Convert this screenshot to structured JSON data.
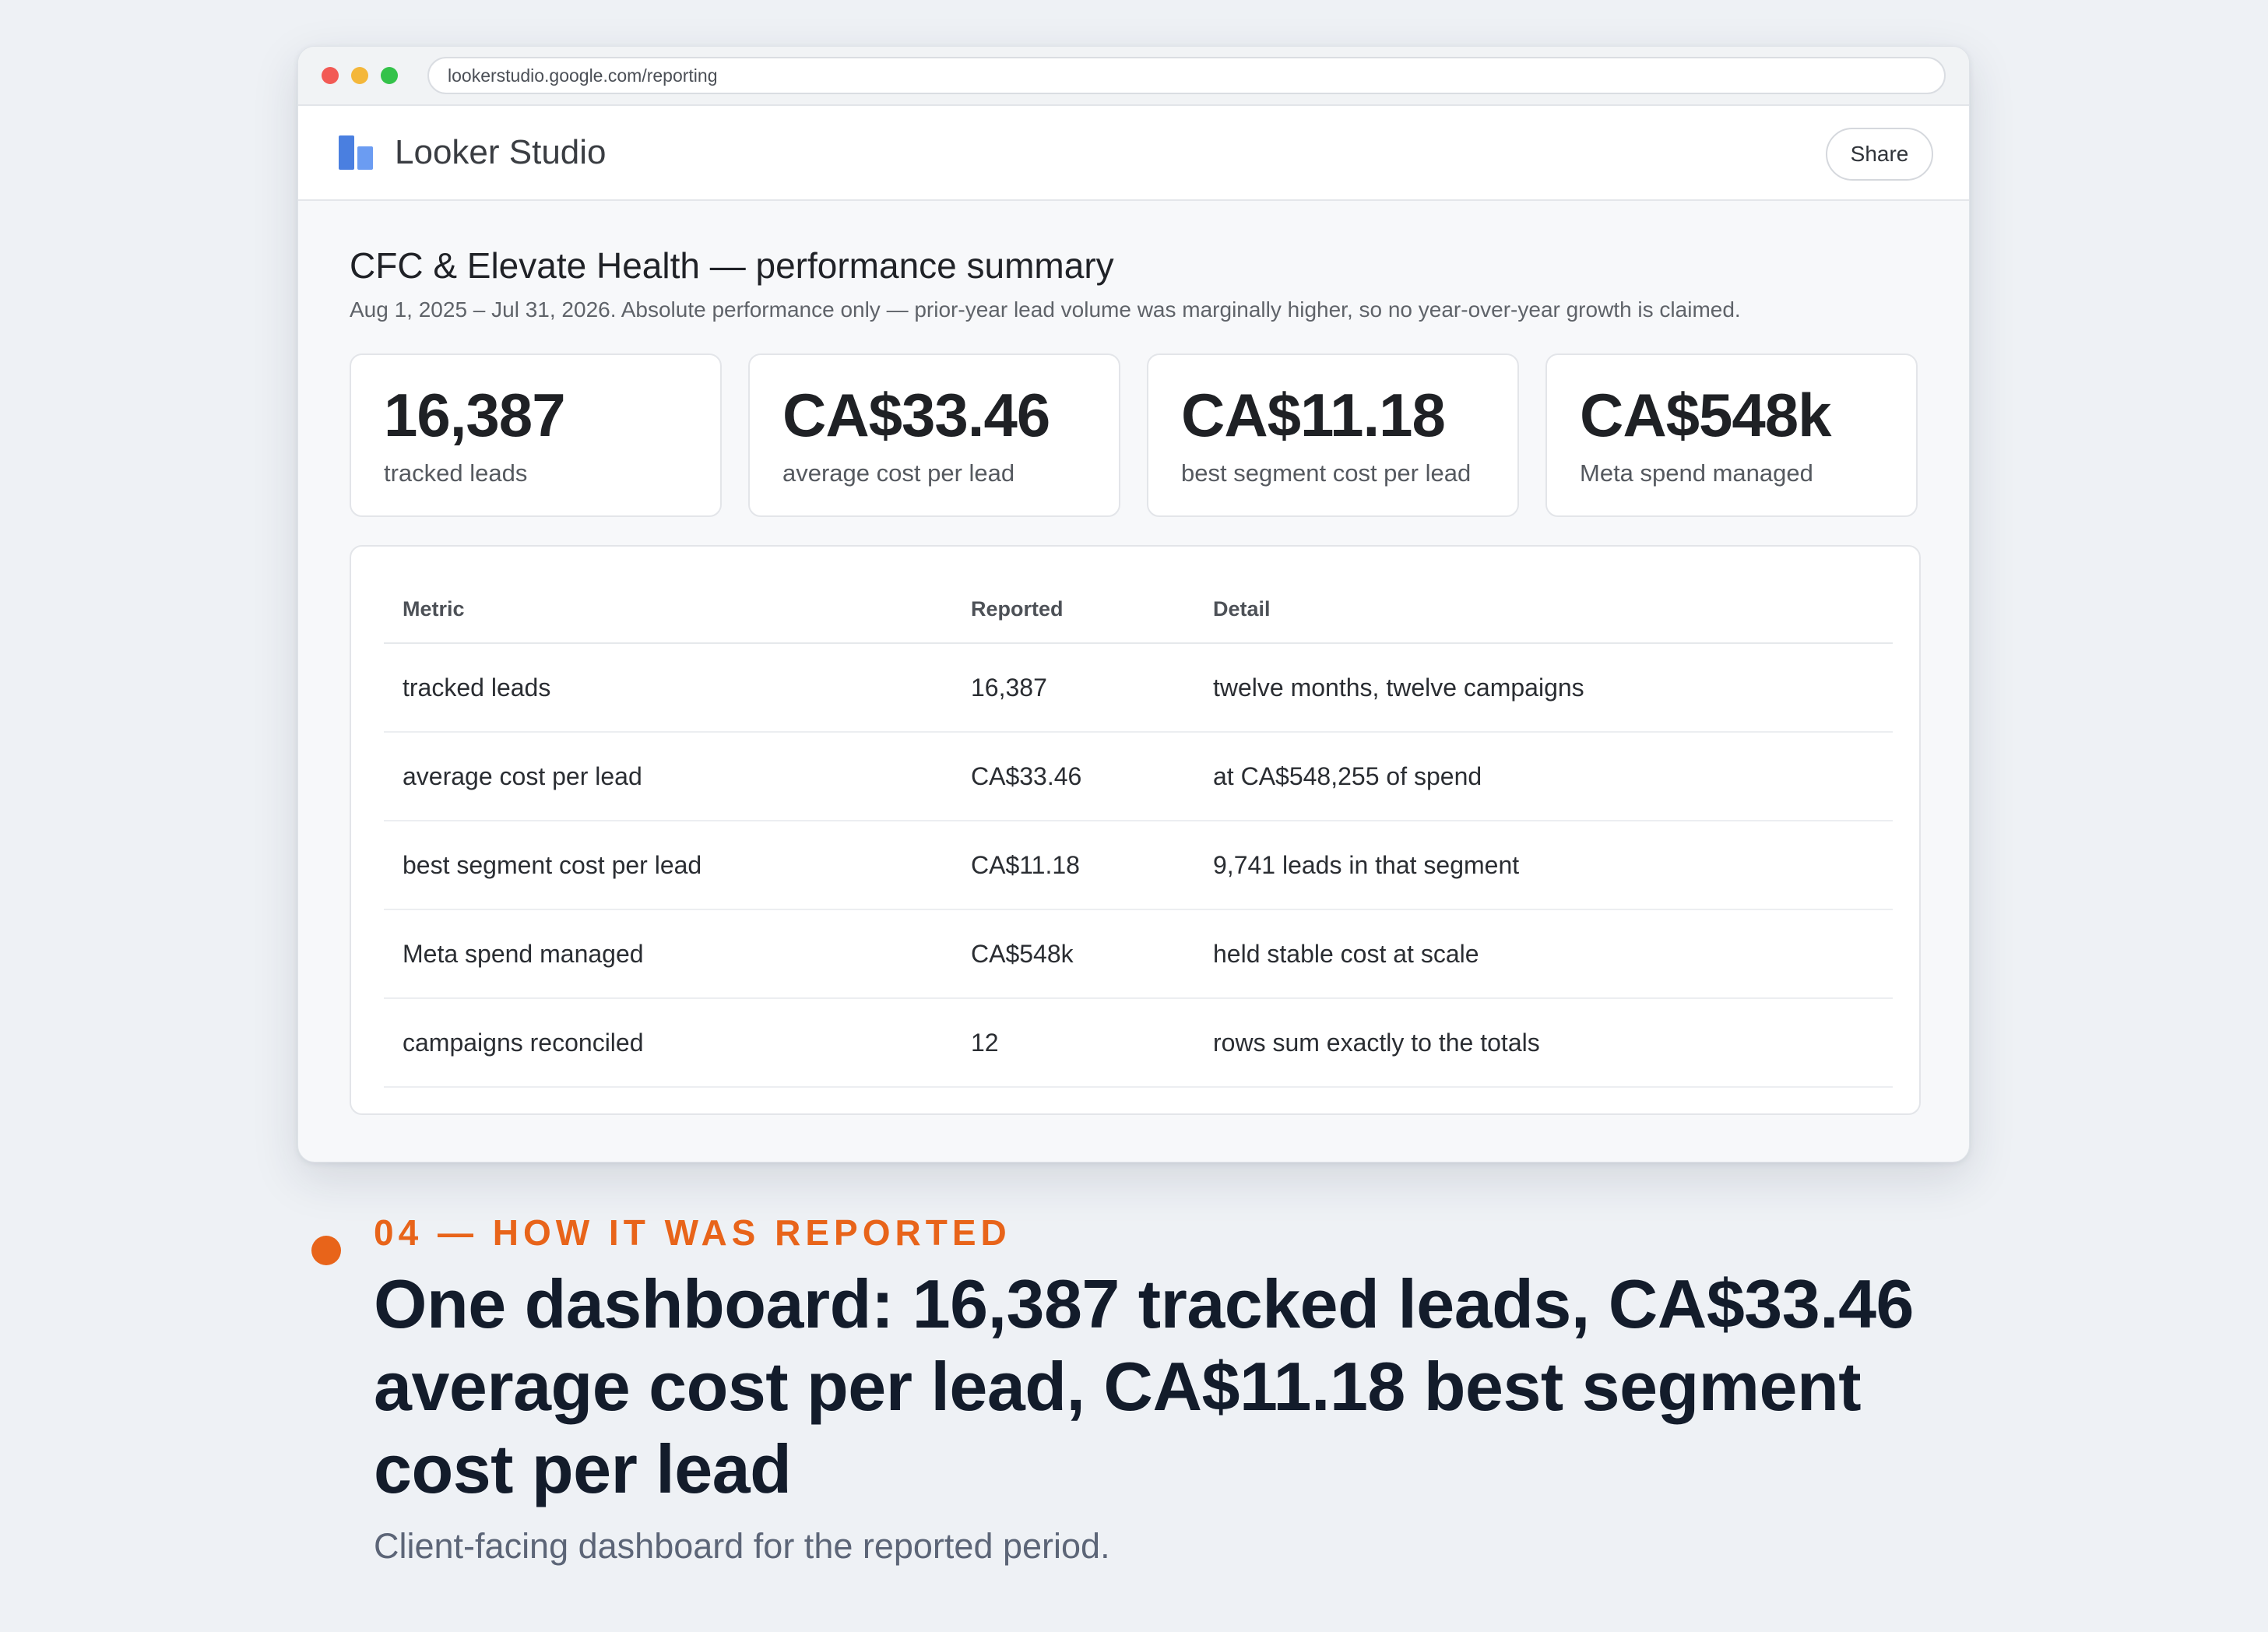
{
  "browser": {
    "url": "lookerstudio.google.com/reporting"
  },
  "app": {
    "name": "Looker Studio",
    "share_label": "Share"
  },
  "report": {
    "title": "CFC & Elevate Health — performance summary",
    "subtitle": "Aug 1, 2025 – Jul 31, 2026. Absolute performance only — prior-year lead volume was marginally higher, so no year-over-year growth is claimed."
  },
  "kpis": [
    {
      "value": "16,387",
      "label": "tracked leads"
    },
    {
      "value": "CA$33.46",
      "label": "average cost per lead"
    },
    {
      "value": "CA$11.18",
      "label": "best segment cost per lead"
    },
    {
      "value": "CA$548k",
      "label": "Meta spend managed"
    }
  ],
  "table": {
    "headers": [
      "Metric",
      "Reported",
      "Detail"
    ],
    "rows": [
      [
        "tracked leads",
        "16,387",
        "twelve months, twelve campaigns"
      ],
      [
        "average cost per lead",
        "CA$33.46",
        "at CA$548,255 of spend"
      ],
      [
        "best segment cost per lead",
        "CA$11.18",
        "9,741 leads in that segment"
      ],
      [
        "Meta spend managed",
        "CA$548k",
        "held stable cost at scale"
      ],
      [
        "campaigns reconciled",
        "12",
        "rows sum exactly to the totals"
      ]
    ]
  },
  "caption": {
    "eyebrow": "04 — HOW IT WAS REPORTED",
    "headline": "One dashboard: 16,387 tracked leads, CA$33.46 average cost per lead, CA$11.18 best segment cost per lead",
    "description": "Client-facing dashboard for the reported period."
  },
  "colors": {
    "accent": "#e8641a",
    "logo_blue": "#4a7fe0",
    "headline": "#131c2b"
  }
}
